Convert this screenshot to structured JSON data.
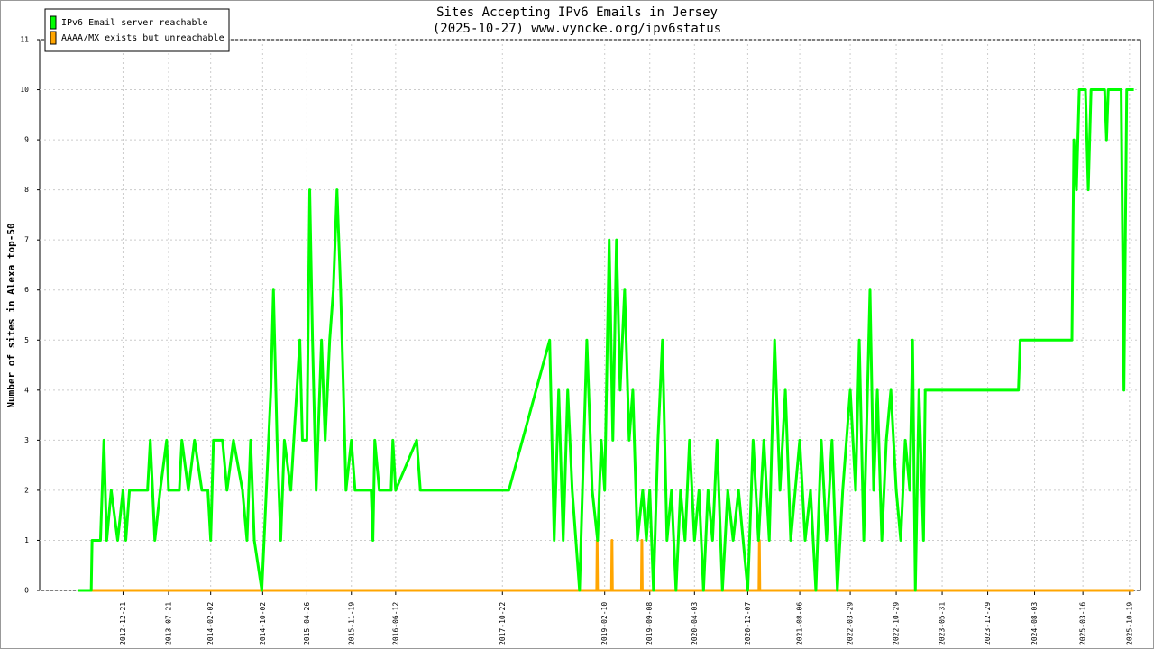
{
  "chart_data": {
    "type": "line",
    "title": "Sites Accepting IPv6 Emails in Jersey",
    "subtitle": "(2025-10-27) www.vyncke.org/ipv6status",
    "ylabel": "Number of sites in Alexa top-50",
    "ylim": [
      0,
      11
    ],
    "yticks": [
      0,
      1,
      2,
      3,
      4,
      5,
      6,
      7,
      8,
      9,
      10,
      11
    ],
    "xlim": [
      "2011-11-29",
      "2025-12-09"
    ],
    "xticks": [
      "2012-12-21",
      "2013-07-21",
      "2014-02-02",
      "2014-10-02",
      "2015-04-26",
      "2015-11-19",
      "2016-06-12",
      "2017-10-22",
      "2019-02-10",
      "2019-09-08",
      "2020-04-03",
      "2020-12-07",
      "2021-08-06",
      "2022-03-29",
      "2022-10-29",
      "2023-05-31",
      "2023-12-29",
      "2024-08-03",
      "2025-03-16",
      "2025-10-19"
    ],
    "grid": true,
    "legend": "top-left",
    "series": [
      {
        "name": "IPv6 Email server reachable",
        "color": "#00ff00",
        "x": [
          "2012-05-24",
          "2012-07-26",
          "2012-07-30",
          "2012-09-07",
          "2012-09-23",
          "2012-10-06",
          "2012-10-27",
          "2012-11-26",
          "2012-12-21",
          "2013-01-03",
          "2013-01-20",
          "2013-04-14",
          "2013-04-27",
          "2013-05-18",
          "2013-06-12",
          "2013-07-12",
          "2013-07-21",
          "2013-09-09",
          "2013-09-21",
          "2013-10-21",
          "2013-11-19",
          "2013-12-23",
          "2014-01-20",
          "2014-02-02",
          "2014-02-15",
          "2014-03-29",
          "2014-04-19",
          "2014-05-19",
          "2014-06-30",
          "2014-07-21",
          "2014-08-07",
          "2014-08-24",
          "2014-09-28",
          "2014-10-19",
          "2014-11-09",
          "2014-11-21",
          "2014-12-08",
          "2014-12-25",
          "2015-01-11",
          "2015-02-10",
          "2015-03-24",
          "2015-04-05",
          "2015-04-26",
          "2015-05-09",
          "2015-05-22",
          "2015-06-08",
          "2015-07-03",
          "2015-07-20",
          "2015-08-10",
          "2015-08-27",
          "2015-09-13",
          "2015-09-30",
          "2015-10-13",
          "2015-10-25",
          "2015-11-19",
          "2015-12-06",
          "2016-01-17",
          "2016-02-19",
          "2016-02-27",
          "2016-03-07",
          "2016-03-28",
          "2016-05-22",
          "2016-05-30",
          "2016-06-12",
          "2016-09-18",
          "2016-10-05",
          "2017-11-21",
          "2018-05-30",
          "2018-06-20",
          "2018-07-11",
          "2018-08-01",
          "2018-08-22",
          "2018-09-12",
          "2018-10-16",
          "2018-11-19",
          "2018-12-14",
          "2019-01-08",
          "2019-01-25",
          "2019-02-10",
          "2019-03-03",
          "2019-03-20",
          "2019-04-06",
          "2019-04-23",
          "2019-05-14",
          "2019-06-04",
          "2019-06-21",
          "2019-07-12",
          "2019-08-06",
          "2019-08-23",
          "2019-09-08",
          "2019-09-25",
          "2019-10-16",
          "2019-11-06",
          "2019-11-27",
          "2019-12-18",
          "2020-01-08",
          "2020-01-29",
          "2020-02-19",
          "2020-03-11",
          "2020-04-03",
          "2020-04-24",
          "2020-05-15",
          "2020-06-05",
          "2020-06-26",
          "2020-07-17",
          "2020-08-11",
          "2020-09-05",
          "2020-09-30",
          "2020-10-25",
          "2020-12-07",
          "2021-01-01",
          "2021-01-26",
          "2021-02-20",
          "2021-03-17",
          "2021-04-11",
          "2021-05-06",
          "2021-05-31",
          "2021-06-25",
          "2021-08-06",
          "2021-08-31",
          "2021-09-25",
          "2021-10-20",
          "2021-11-14",
          "2021-12-09",
          "2022-01-03",
          "2022-01-28",
          "2022-02-22",
          "2022-03-29",
          "2022-04-23",
          "2022-05-10",
          "2022-05-31",
          "2022-06-29",
          "2022-07-16",
          "2022-08-02",
          "2022-08-23",
          "2022-09-13",
          "2022-10-04",
          "2022-10-29",
          "2022-11-19",
          "2022-12-10",
          "2022-12-31",
          "2023-01-13",
          "2023-01-26",
          "2023-02-12",
          "2023-03-05",
          "2023-03-13",
          "2024-05-20",
          "2024-05-28",
          "2025-01-24",
          "2025-02-02",
          "2025-02-14",
          "2025-02-27",
          "2025-03-28",
          "2025-04-10",
          "2025-04-23",
          "2025-06-25",
          "2025-07-04",
          "2025-07-12",
          "2025-09-10",
          "2025-09-23",
          "2025-10-06",
          "2025-11-08"
        ],
        "values": [
          0,
          0,
          1,
          1,
          3,
          1,
          2,
          1,
          2,
          1,
          2,
          2,
          3,
          1,
          2,
          3,
          2,
          2,
          3,
          2,
          3,
          2,
          2,
          1,
          3,
          3,
          2,
          3,
          2,
          1,
          3,
          1,
          0,
          2,
          4,
          6,
          3,
          1,
          3,
          2,
          5,
          3,
          3,
          8,
          5,
          2,
          5,
          3,
          5,
          6,
          8,
          6,
          4,
          2,
          3,
          2,
          2,
          2,
          1,
          3,
          2,
          2,
          3,
          2,
          3,
          2,
          2,
          5,
          1,
          4,
          1,
          4,
          2,
          0,
          5,
          2,
          1,
          3,
          2,
          7,
          3,
          7,
          4,
          6,
          3,
          4,
          1,
          2,
          1,
          2,
          0,
          3,
          5,
          1,
          2,
          0,
          2,
          1,
          3,
          1,
          2,
          0,
          2,
          1,
          3,
          0,
          2,
          1,
          2,
          0,
          3,
          1,
          3,
          1,
          5,
          2,
          4,
          1,
          3,
          1,
          2,
          0,
          3,
          1,
          3,
          0,
          2,
          4,
          2,
          5,
          1,
          6,
          2,
          4,
          1,
          3,
          4,
          2,
          1,
          3,
          2,
          5,
          0,
          4,
          1,
          4,
          4,
          5,
          5,
          9,
          8,
          10,
          10,
          8,
          10,
          10,
          9,
          10,
          10,
          4,
          10,
          10
        ]
      },
      {
        "name": "AAAA/MX exists but unreachable",
        "color": "#ffa500",
        "x": [
          "2012-05-24",
          "2019-01-04",
          "2019-01-06",
          "2019-01-08",
          "2019-03-14",
          "2019-03-16",
          "2019-03-18",
          "2019-07-31",
          "2019-08-02",
          "2019-08-04",
          "2021-01-28",
          "2021-01-30",
          "2021-02-01",
          "2025-11-08"
        ],
        "values": [
          0,
          0,
          1,
          0,
          0,
          1,
          0,
          0,
          1,
          0,
          0,
          1,
          0,
          0
        ]
      }
    ]
  }
}
